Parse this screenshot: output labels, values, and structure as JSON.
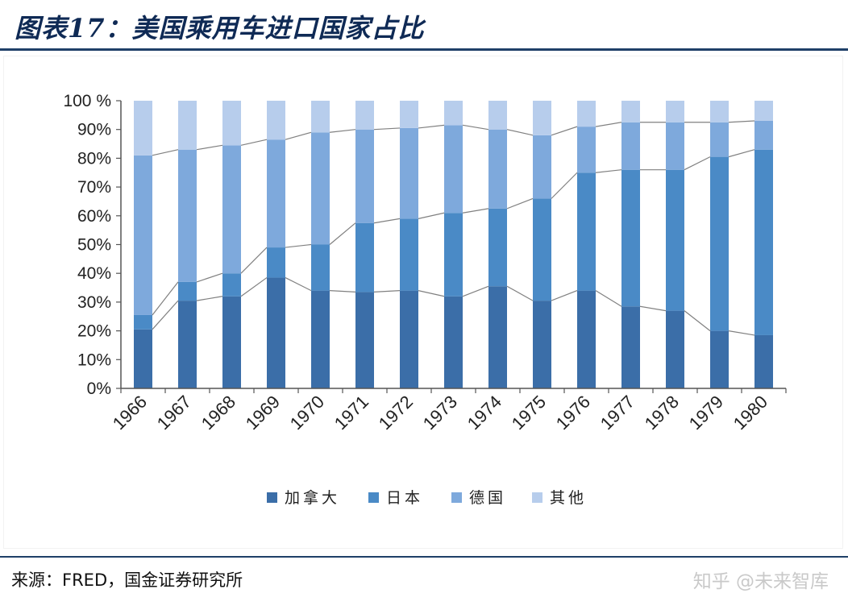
{
  "title": "图表17：美国乘用车进口国家占比",
  "source": "来源：FRED，国金证券研究所",
  "watermark": "知乎 @未来智库",
  "colors": {
    "加拿大": "#3b6ea8",
    "日本": "#4a8ac6",
    "德国": "#7ea9dc",
    "其他": "#b7cdec",
    "connector": "#808080",
    "title": "#0f2a55",
    "rule": "#1f4068"
  },
  "chart_data": {
    "type": "bar",
    "stacked": true,
    "normalized": true,
    "categories": [
      "1966",
      "1967",
      "1968",
      "1969",
      "1970",
      "1971",
      "1972",
      "1973",
      "1974",
      "1975",
      "1976",
      "1977",
      "1978",
      "1979",
      "1980"
    ],
    "series": [
      {
        "name": "加拿大",
        "values": [
          20.5,
          30.5,
          32,
          38.5,
          34,
          33.5,
          34,
          32,
          35.5,
          30.5,
          34,
          28.5,
          27,
          20,
          18.5
        ]
      },
      {
        "name": "日本",
        "values": [
          5,
          6.5,
          8,
          10.5,
          16,
          24,
          25,
          29,
          27,
          35.5,
          41,
          47.5,
          49,
          60.5,
          64.5
        ]
      },
      {
        "name": "德国",
        "values": [
          55.5,
          46,
          44.5,
          37.5,
          39,
          32.5,
          31.5,
          30.5,
          27.5,
          22,
          16,
          16.5,
          16.5,
          12,
          10
        ]
      },
      {
        "name": "其他",
        "values": [
          19,
          17,
          15.5,
          13.5,
          11,
          10,
          9.5,
          8.5,
          10,
          12,
          9,
          7.5,
          7.5,
          7.5,
          7
        ]
      }
    ],
    "yticks": [
      "0%",
      "10%",
      "20%",
      "30%",
      "40%",
      "50%",
      "60%",
      "70%",
      "80%",
      "90%",
      "100 %"
    ],
    "ylim": [
      0,
      100
    ],
    "legend_position": "bottom",
    "series_lines": true,
    "xlabel": "",
    "ylabel": ""
  }
}
